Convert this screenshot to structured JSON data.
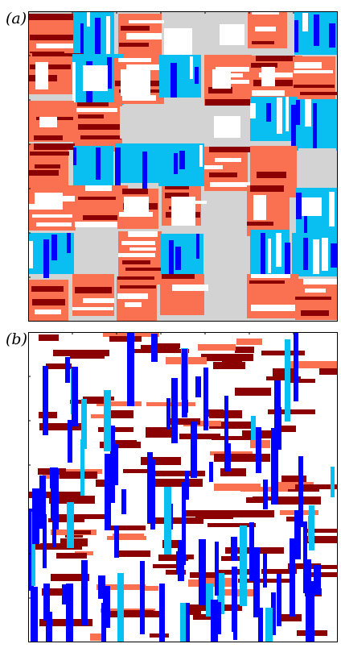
{
  "panels": [
    {
      "label": "(a)"
    },
    {
      "label": "(b)"
    }
  ],
  "colors": {
    "gray": "#d3d3d3",
    "salmon": "#fa7152",
    "darkred": "#8b0000",
    "lightblue": "#09bff2",
    "blue": "#0000ff",
    "white": "#ffffff",
    "frame": "#000000"
  }
}
